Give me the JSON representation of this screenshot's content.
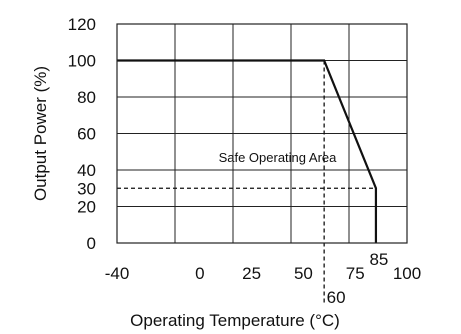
{
  "chart_data": {
    "type": "line",
    "xlabel": "Operating Temperature (°C)",
    "ylabel": "Output Power (%)",
    "xlim": [
      -40,
      100
    ],
    "ylim": [
      0,
      120
    ],
    "x_ticks": [
      "-40",
      "0",
      "25",
      "50",
      "75",
      "100"
    ],
    "x_tick_values": [
      -40,
      0,
      25,
      50,
      75,
      100
    ],
    "y_ticks": [
      "0",
      "20",
      "40",
      "60",
      "80",
      "100",
      "120"
    ],
    "y_tick_values": [
      0,
      20,
      40,
      60,
      80,
      100,
      120
    ],
    "grid": true,
    "series": [
      {
        "x": [
          -40,
          60,
          85,
          85
        ],
        "y": [
          100,
          100,
          30,
          0
        ]
      }
    ],
    "reference_lines": {
      "vertical": {
        "x": 60,
        "y_from": 0,
        "y_to": 100,
        "label": "60"
      },
      "horizontal": {
        "y": 30,
        "x_from": -40,
        "x_to": 85,
        "label": "30"
      }
    },
    "point_labels": [
      {
        "text": "85",
        "x": 85
      }
    ],
    "annotations": [
      {
        "text": "Safe Operating Area",
        "x": 10,
        "y": 47
      }
    ]
  }
}
